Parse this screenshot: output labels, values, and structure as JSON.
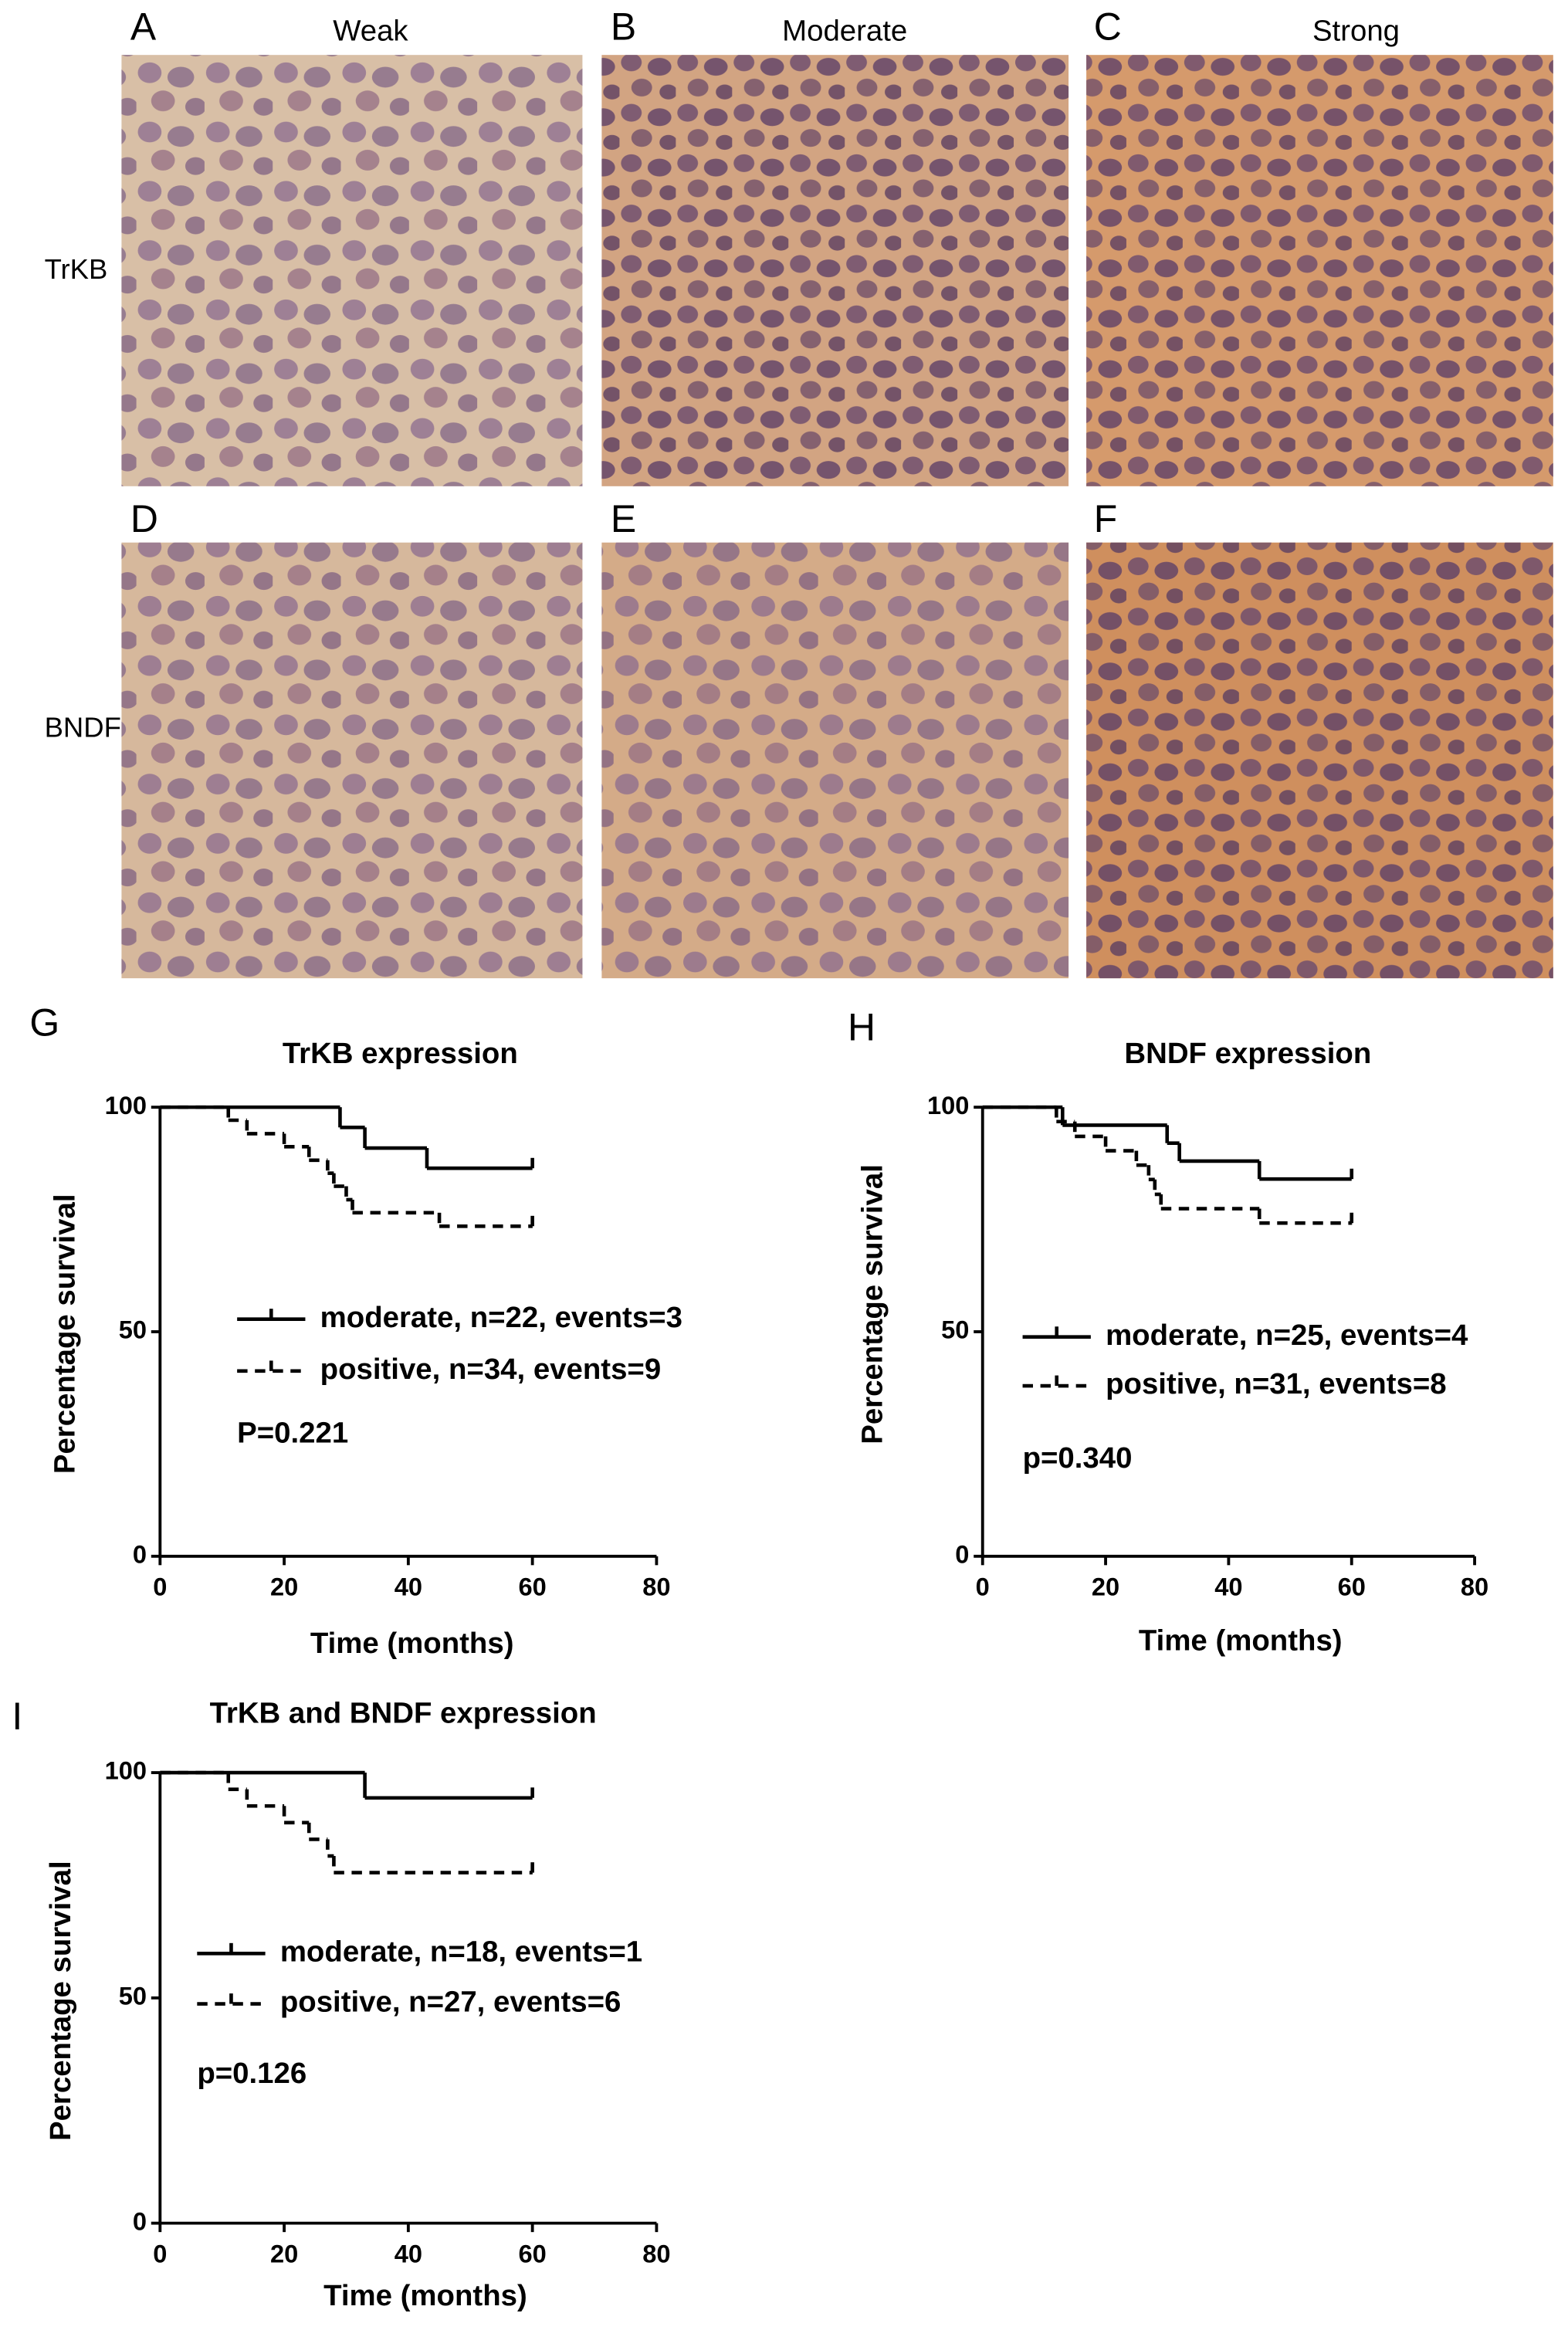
{
  "panels": [
    {
      "letter": "A",
      "caption": "Weak"
    },
    {
      "letter": "B",
      "caption": "Moderate"
    },
    {
      "letter": "C",
      "caption": "Strong"
    },
    {
      "letter": "D"
    },
    {
      "letter": "E"
    },
    {
      "letter": "F"
    }
  ],
  "row_labels": [
    "TrKB",
    "BNDF"
  ],
  "chart_data": [
    {
      "type": "survival",
      "letter": "G",
      "title": "TrKB expression",
      "x_label": "Time (months)",
      "y_label": "Percentage survival",
      "xlim": [
        0,
        80
      ],
      "xticks": [
        0,
        20,
        40,
        60,
        80
      ],
      "ylim": [
        0,
        100
      ],
      "yticks": [
        0,
        50,
        100
      ],
      "annotation": "P=0.221",
      "series": [
        {
          "name": "moderate, n=22, events=3",
          "color": "#000000",
          "line_style": "solid",
          "x": [
            0,
            29,
            33,
            43,
            60
          ],
          "values": [
            100,
            95.5,
            90.9,
            86.4,
            86.4
          ]
        },
        {
          "name": "positive, n=34, events=9",
          "color": "#000000",
          "line_style": "dashed",
          "x": [
            0,
            11,
            14,
            20,
            24,
            27,
            28,
            30,
            31,
            45,
            60
          ],
          "values": [
            100,
            97.1,
            94.1,
            91.2,
            88.2,
            85.3,
            82.4,
            79.4,
            76.5,
            73.5,
            73.5
          ]
        }
      ]
    },
    {
      "type": "survival",
      "letter": "H",
      "title": "BNDF expression",
      "x_label": "Time (months)",
      "y_label": "Percentage survival",
      "xlim": [
        0,
        80
      ],
      "xticks": [
        0,
        20,
        40,
        60,
        80
      ],
      "ylim": [
        0,
        100
      ],
      "yticks": [
        0,
        50,
        100
      ],
      "annotation": "p=0.340",
      "series": [
        {
          "name": "moderate, n=25, events=4",
          "color": "#000000",
          "line_style": "solid",
          "x": [
            0,
            13,
            30,
            32,
            45,
            60
          ],
          "values": [
            100,
            96,
            92,
            88,
            84,
            84
          ]
        },
        {
          "name": "positive, n=31, events=8",
          "color": "#000000",
          "line_style": "dashed",
          "x": [
            0,
            12,
            15,
            20,
            25,
            27,
            28,
            29,
            45,
            60
          ],
          "values": [
            100,
            96.8,
            93.5,
            90.3,
            87.1,
            83.9,
            80.6,
            77.4,
            74.2,
            74.2
          ]
        }
      ]
    },
    {
      "type": "survival",
      "letter": "I",
      "title": "TrKB and BNDF expression",
      "x_label": "Time (months)",
      "y_label": "Percentage survival",
      "xlim": [
        0,
        80
      ],
      "xticks": [
        0,
        20,
        40,
        60,
        80
      ],
      "ylim": [
        0,
        100
      ],
      "yticks": [
        0,
        50,
        100
      ],
      "annotation": "p=0.126",
      "series": [
        {
          "name": "moderate, n=18, events=1",
          "color": "#000000",
          "line_style": "solid",
          "x": [
            0,
            33,
            60
          ],
          "values": [
            100,
            94.4,
            94.4
          ]
        },
        {
          "name": "positive, n=27, events=6",
          "color": "#000000",
          "line_style": "dashed",
          "x": [
            0,
            11,
            14,
            20,
            24,
            27,
            28,
            60
          ],
          "values": [
            100,
            96.3,
            92.6,
            88.9,
            85.2,
            81.5,
            77.8,
            77.8
          ]
        }
      ]
    }
  ]
}
